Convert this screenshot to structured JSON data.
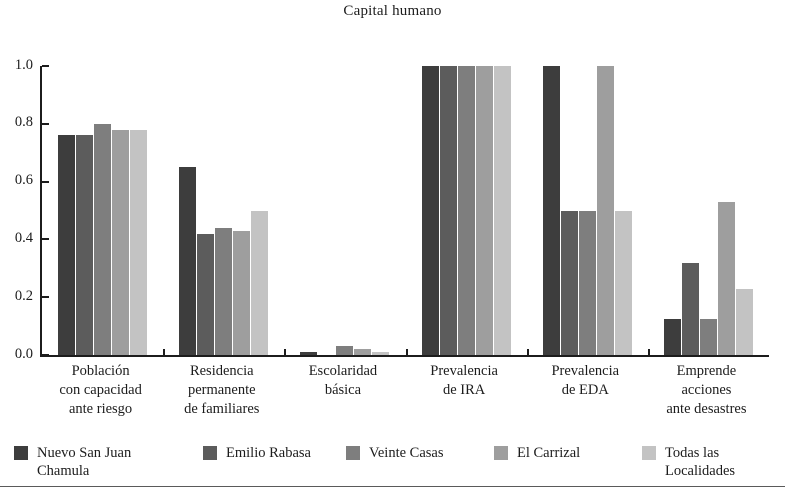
{
  "chart_data": {
    "type": "bar",
    "title": "Capital humano",
    "xlabel": "",
    "ylabel": "",
    "ylim": [
      0,
      1.0
    ],
    "grid": false,
    "legend_position": "bottom",
    "y_ticks": [
      "0.0",
      "0.2",
      "0.4",
      "0.6",
      "0.8",
      "1.0"
    ],
    "categories": [
      {
        "label": "Población con capacidad ante riesgo",
        "label_lines": [
          "Población",
          "con capacidad",
          "ante riesgo"
        ]
      },
      {
        "label": "Residencia permanente de familiares",
        "label_lines": [
          "Residencia",
          "permanente",
          "de familiares"
        ]
      },
      {
        "label": "Escolaridad básica",
        "label_lines": [
          "Escolaridad",
          "básica"
        ]
      },
      {
        "label": "Prevalencia de IRA",
        "label_lines": [
          "Prevalencia",
          "de IRA"
        ]
      },
      {
        "label": "Prevalencia de EDA",
        "label_lines": [
          "Prevalencia",
          "de EDA"
        ]
      },
      {
        "label": "Emprende acciones ante desastres",
        "label_lines": [
          "Emprende",
          "acciones",
          "ante desastres"
        ]
      }
    ],
    "series": [
      {
        "name": "Nuevo San Juan Chamula",
        "label_lines": [
          "Nuevo San Juan",
          "Chamula"
        ],
        "color": "#3d3d3d",
        "values": [
          0.76,
          0.65,
          0.01,
          1.0,
          1.0,
          0.125
        ]
      },
      {
        "name": "Emilio Rabasa",
        "label_lines": [
          "Emilio Rabasa"
        ],
        "color": "#5c5c5c",
        "values": [
          0.76,
          0.42,
          0.0,
          1.0,
          0.5,
          0.32
        ]
      },
      {
        "name": "Veinte Casas",
        "label_lines": [
          "Veinte Casas"
        ],
        "color": "#7e7e7e",
        "values": [
          0.8,
          0.44,
          0.03,
          1.0,
          0.5,
          0.125
        ]
      },
      {
        "name": "El Carrizal",
        "label_lines": [
          "El Carrizal"
        ],
        "color": "#9e9e9e",
        "values": [
          0.78,
          0.43,
          0.02,
          1.0,
          1.0,
          0.53
        ]
      },
      {
        "name": "Todas las Localidades",
        "label_lines": [
          "Todas las",
          "Localidades"
        ],
        "color": "#c3c3c3",
        "values": [
          0.78,
          0.5,
          0.01,
          1.0,
          0.5,
          0.23
        ]
      }
    ]
  }
}
